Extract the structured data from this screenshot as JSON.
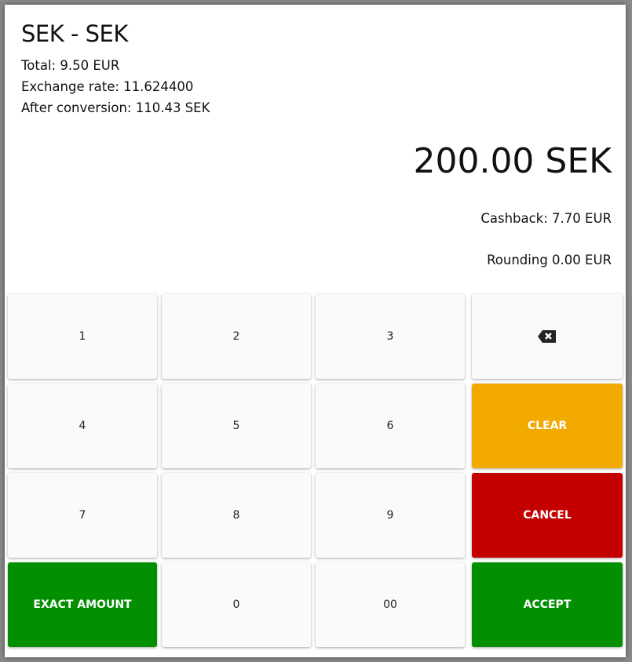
{
  "dialog": {
    "title": "SEK - SEK",
    "total": "Total: 9.50 EUR",
    "exchange_rate": "Exchange rate: 11.624400",
    "after_conversion": "After conversion: 110.43 SEK",
    "amount": "200.00 SEK",
    "cashback": "Cashback: 7.70 EUR",
    "rounding": "Rounding 0.00 EUR"
  },
  "keypad": {
    "k1": "1",
    "k2": "2",
    "k3": "3",
    "k4": "4",
    "k5": "5",
    "k6": "6",
    "k7": "7",
    "k8": "8",
    "k9": "9",
    "k0": "0",
    "k00": "00",
    "clear": "CLEAR",
    "cancel": "CANCEL",
    "exact": "EXACT AMOUNT",
    "accept": "ACCEPT",
    "backspace_icon": "backspace-icon"
  },
  "colors": {
    "clear": "#f2a900",
    "cancel": "#c40000",
    "accept": "#028f02"
  }
}
